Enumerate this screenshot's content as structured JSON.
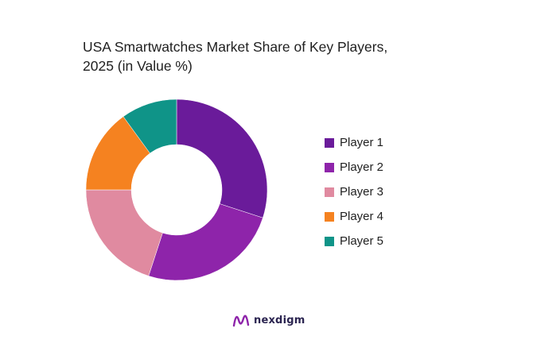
{
  "chart_data": {
    "type": "pie",
    "title_line1": "USA Smartwatches Market Share of Key Players,",
    "title_line2": "2025 (in Value %)",
    "categories": [
      "Player 1",
      "Player 2",
      "Player 3",
      "Player 4",
      "Player 5"
    ],
    "values": [
      30,
      25,
      20,
      15,
      10
    ],
    "colors": [
      "#6a1b9a",
      "#8e24aa",
      "#e08aa0",
      "#f58220",
      "#0f9488"
    ],
    "donut": true,
    "legend_position": "right"
  },
  "brand": {
    "name": "nexdigm",
    "icon": "nexdigm-logo-icon"
  }
}
